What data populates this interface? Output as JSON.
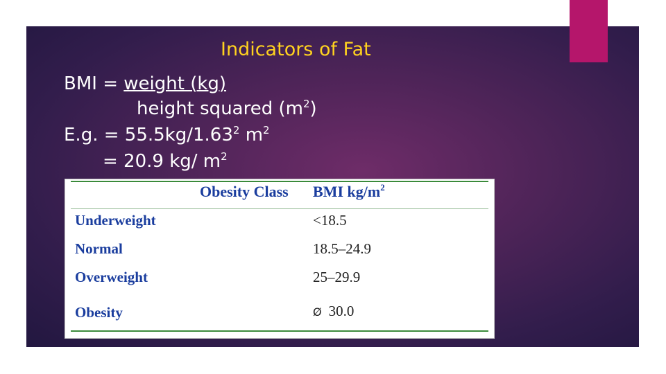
{
  "slide": {
    "title": "Indicators of Fat",
    "formula": {
      "line1_prefix": "BMI = ",
      "line1_numerator": "weight (kg)",
      "line2_text": "height squared (m",
      "line2_sup": "2",
      "line2_suffix": ")",
      "line3_text": "E.g. = 55.5kg/1.63",
      "line3_sup1": "2",
      "line3_unit": " m",
      "line3_sup2": "2",
      "line4_text": "= 20.9 kg/ m",
      "line4_sup": "2"
    },
    "colors": {
      "title": "#ffd21f",
      "accent_bar": "#b5166b",
      "background": "#4e2458",
      "table_text": "#1a3d9e"
    }
  },
  "table": {
    "headers": {
      "class": "Obesity Class",
      "bmi": "BMI kg/m",
      "bmi_sup": "2"
    },
    "rows": [
      {
        "label": "Underweight",
        "value": "<18.5"
      },
      {
        "label": "Normal",
        "value": "18.5–24.9"
      },
      {
        "label": "Overweight",
        "value": "25–29.9"
      },
      {
        "label": "Obesity",
        "value": "30.0",
        "bullet": "Ø"
      }
    ]
  }
}
